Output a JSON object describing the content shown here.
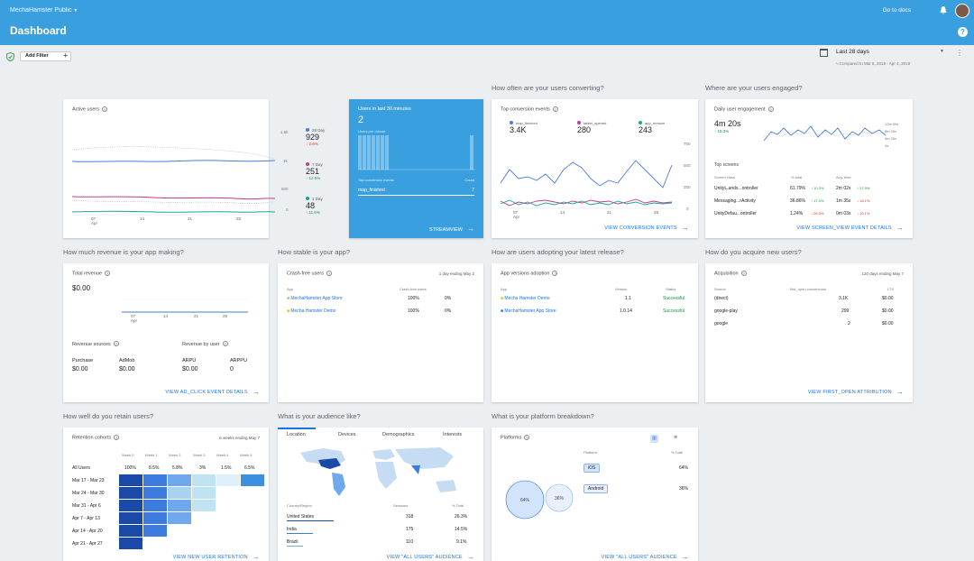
{
  "header": {
    "project": "MechaHamster Public",
    "goto": "Go to docs",
    "title": "Dashboard",
    "help_icon": "?"
  },
  "filter": {
    "add_label": "Add Filter",
    "date_range": "Last 28 days",
    "compared": "Compared to Mar 8, 2019 - Apr 4, 2019"
  },
  "questions": {
    "converting": "How often are your users converting?",
    "engaged": "Where are your users engaged?",
    "revenue": "How much revenue is your app making?",
    "stable": "How stable is your app?",
    "adopting": "How are users adopting your latest release?",
    "acquire": "How do you acquire new users?",
    "retain": "How well do you retain users?",
    "audience": "What is your audience like?",
    "platform": "What is your platform breakdown?"
  },
  "active": {
    "title": "Active users",
    "axis": [
      "1.5k",
      "1k",
      "500",
      "0"
    ],
    "xticks": [
      "07",
      "14",
      "21",
      "28"
    ],
    "xmonth": "Apr",
    "legend": [
      {
        "label": "28 Day",
        "value": "929",
        "delta": "↓ 2.6%"
      },
      {
        "label": "7 Day",
        "value": "251",
        "delta": "↑ 12.6%"
      },
      {
        "label": "1 Day",
        "value": "48",
        "delta": "↑ 11.6%"
      }
    ]
  },
  "realtime": {
    "title": "Users in last 30 minutes",
    "value": "2",
    "sub": "Users per minute",
    "top": "Top conversion events",
    "count": "Count",
    "event": "map_finished",
    "event_count": "7",
    "link": "STREAMVIEW"
  },
  "conversions": {
    "title": "Top conversion events",
    "events": [
      {
        "name": "map_finished",
        "value": "3.4K"
      },
      {
        "name": "tablet_opened",
        "value": "280"
      },
      {
        "name": "app_remove",
        "value": "243"
      }
    ],
    "yaxis": [
      "750",
      "500",
      "250",
      "0"
    ],
    "xticks": [
      "07",
      "14",
      "21",
      "28"
    ],
    "xmonth": "Apr",
    "link": "VIEW CONVERSION EVENTS"
  },
  "engagement": {
    "title": "Daily user engagement",
    "value": "4m 20s",
    "delta": "↑ 19.3%",
    "axis": [
      "12m 00s",
      "8m 00s",
      "4m 00s",
      "0s"
    ],
    "screens_title": "Top screens",
    "cols": [
      "Screen class",
      "% total",
      "Avg. time"
    ],
    "rows": [
      {
        "name": "UnityL.ands...ontroller",
        "pct": "61.79%",
        "pd": "↑ 10.3%",
        "time": "2m 02s",
        "td": "↑ 17.9%"
      },
      {
        "name": "Messaging...rActivity",
        "pct": "36.86%",
        "pd": "↑ 17.3%",
        "time": "1m 35s",
        "td": "↓ 18.1%"
      },
      {
        "name": "UnityDefau...ontroller",
        "pct": "1.24%",
        "pd": "↓ 26.3%",
        "time": "0m 03s",
        "td": "↓ 10.1%"
      }
    ],
    "link": "VIEW SCREEN_VIEW EVENT DETAILS"
  },
  "revenue": {
    "title": "Total revenue",
    "value": "$0.00",
    "xticks": [
      "07",
      "14",
      "21",
      "28"
    ],
    "xmonth": "Apr",
    "sources": "Revenue sources",
    "byuser": "Revenue by user",
    "items": [
      {
        "label": "Purchase",
        "value": "$0.00"
      },
      {
        "label": "AdMob",
        "value": "$0.00"
      },
      {
        "label": "ARPU",
        "value": "$0.00"
      },
      {
        "label": "ARPPU",
        "value": "0"
      }
    ],
    "link": "VIEW AD_CLICK EVENT DETAILS"
  },
  "crash": {
    "title": "Crash-free users",
    "period": "1 day ending May 2",
    "cols": [
      "App",
      "Crash-free users"
    ],
    "rows": [
      {
        "app": "MechaHamster App Store",
        "v": "100%",
        "d": "0%"
      },
      {
        "app": "Mecha Hamster Demo",
        "v": "100%",
        "d": "0%"
      }
    ]
  },
  "adoption": {
    "title": "App versions adoption",
    "cols": [
      "App",
      "Version",
      "Status"
    ],
    "rows": [
      {
        "app": "Mecha Hamster Demo",
        "ver": "1.1",
        "status": "Successful"
      },
      {
        "app": "MechaHamster App Store",
        "ver": "1.0.14",
        "status": "Successful"
      }
    ]
  },
  "acquisition": {
    "title": "Acquisition",
    "period": "120 days ending May 7",
    "cols": [
      "Source",
      "first_open conversions",
      "LTV"
    ],
    "rows": [
      {
        "src": "(direct)",
        "conv": "3.1K",
        "ltv": "$0.00"
      },
      {
        "src": "google-play",
        "conv": "299",
        "ltv": "$0.00"
      },
      {
        "src": "google",
        "conv": "2",
        "ltv": "$0.00"
      }
    ],
    "link": "VIEW FIRST_OPEN ATTRIBUTION"
  },
  "retention": {
    "title": "Retention cohorts",
    "period": "6 weeks ending May 7",
    "weeks": [
      "Week 0",
      "Week 1",
      "Week 2",
      "Week 3",
      "Week 4",
      "Week 5"
    ],
    "all": [
      "All Users",
      "100%",
      "8.5%",
      "5.8%",
      "3%",
      "1.5%",
      "6.5%"
    ],
    "cohorts": [
      "Mar 17 - Mar 23",
      "Mar 24 - Mar 30",
      "Mar 31 - Apr 6",
      "Apr 7 - Apr 13",
      "Apr 14 - Apr 20",
      "Apr 21 - Apr 27"
    ],
    "link": "VIEW NEW USER RETENTION"
  },
  "audience": {
    "tabs": [
      "Location",
      "Devices",
      "Demographics",
      "Interests"
    ],
    "cols": [
      "Country/Region",
      "Sessions",
      "% Total"
    ],
    "rows": [
      {
        "c": "United States",
        "s": "318",
        "p": "26.3%"
      },
      {
        "c": "India",
        "s": "175",
        "p": "14.5%"
      },
      {
        "c": "Brazil",
        "s": "110",
        "p": "9.1%"
      }
    ],
    "link": "VIEW \"ALL USERS\" AUDIENCE"
  },
  "platforms": {
    "title": "Platforms",
    "cols": [
      "Platform",
      "% Total"
    ],
    "rows": [
      {
        "name": "iOS",
        "pct": "64%"
      },
      {
        "name": "Android",
        "pct": "36%"
      }
    ],
    "bubbles": [
      "64%",
      "36%"
    ],
    "link": "VIEW \"ALL USERS\" AUDIENCE"
  }
}
